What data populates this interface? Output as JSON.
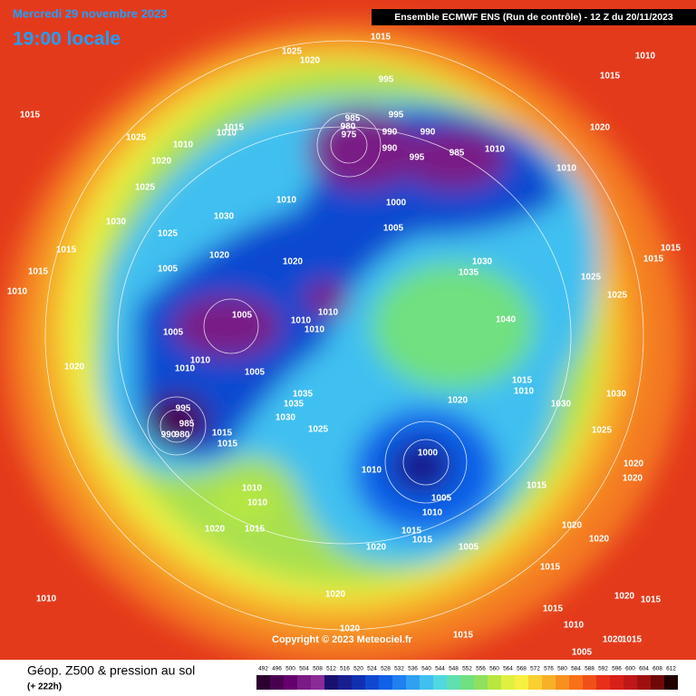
{
  "header": {
    "date": "Mercredi 29 novembre 2023",
    "time": "19:00 locale",
    "run": "Ensemble ECMWF ENS  (Run de contrôle)  -  12 Z du 20/11/2023"
  },
  "copyright": "Copyright © 2023 Meteociel.fr",
  "footer": {
    "title": "Géop. Z500 & pression au sol",
    "lead": "(+ 222h)"
  },
  "colorbar": {
    "levels": [
      492,
      496,
      500,
      504,
      508,
      512,
      516,
      520,
      524,
      528,
      532,
      536,
      540,
      544,
      548,
      552,
      556,
      560,
      564,
      568,
      572,
      576,
      580,
      584,
      588,
      592,
      596,
      600,
      604,
      608,
      612
    ],
    "colors": [
      "#2b0030",
      "#4a0050",
      "#66006e",
      "#7a1a86",
      "#8c2a9a",
      "#1a1070",
      "#181e90",
      "#1030b0",
      "#1048d0",
      "#1060e8",
      "#2080f0",
      "#30a0f0",
      "#40c0f0",
      "#50d8e0",
      "#60e0b0",
      "#70e080",
      "#90e060",
      "#b8e840",
      "#e0f040",
      "#f8f040",
      "#f8d030",
      "#f8b028",
      "#f89020",
      "#f87018",
      "#f05018",
      "#e83018",
      "#d82018",
      "#c01818",
      "#a01010",
      "#700808",
      "#200000"
    ]
  },
  "isobar_labels": [
    1015,
    1025,
    1020,
    1010,
    995,
    1015,
    1015,
    985,
    995,
    1015,
    1010,
    980,
    975,
    990,
    990,
    985,
    1025,
    1010,
    990,
    995,
    1010,
    1020,
    1020,
    1010,
    1025,
    1010,
    1000,
    1005,
    1030,
    1030,
    1025,
    1015,
    1020,
    1020,
    1015,
    1015,
    1005,
    1035,
    1030,
    1025,
    1015,
    1010,
    1005,
    1010,
    1010,
    1040,
    1025,
    1005,
    1010,
    1020,
    1010,
    1010,
    1005,
    1035,
    1035,
    1030,
    1015,
    1010,
    1030,
    1020,
    995,
    985,
    990,
    980,
    1015,
    1025,
    1015,
    1030,
    1025,
    1000,
    1010,
    1020,
    1020,
    1005,
    1015,
    1010,
    1010,
    1015,
    1020,
    1010,
    1020,
    1015,
    1015,
    1020,
    1005,
    1020,
    1015,
    1010,
    1020,
    1020,
    1015,
    1015,
    1010,
    1020,
    1015,
    1005,
    1015,
    1020
  ]
}
